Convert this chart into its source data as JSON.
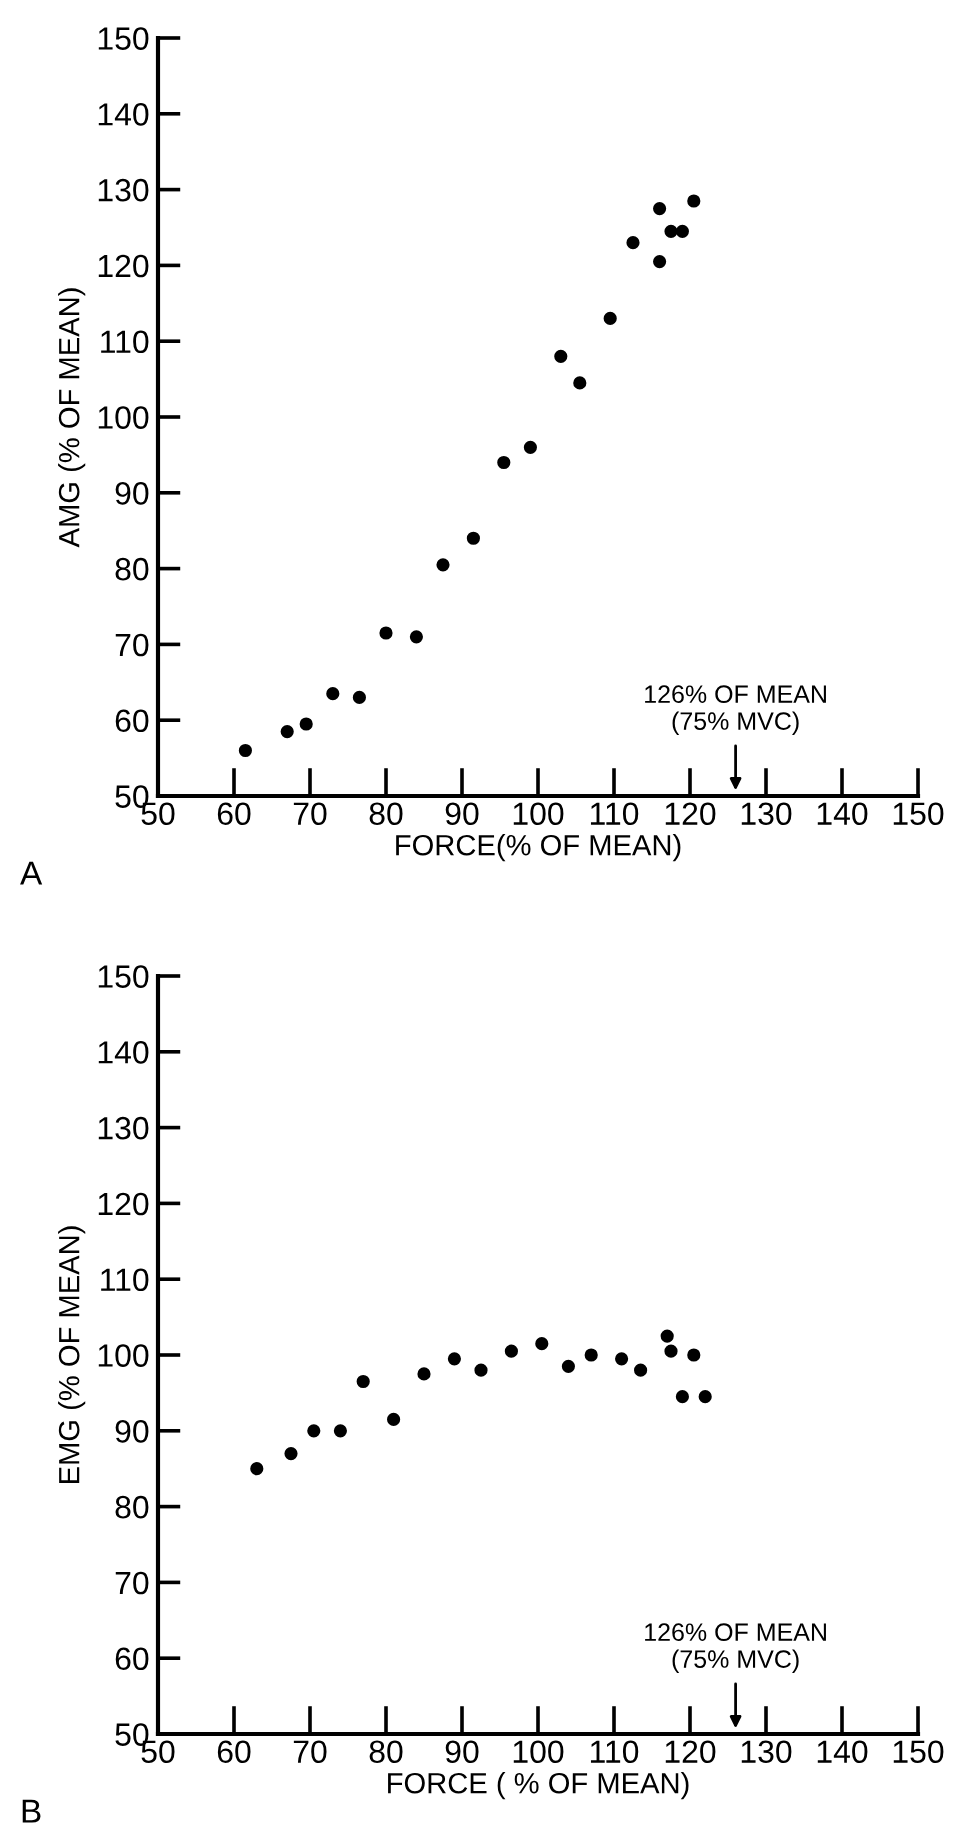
{
  "chart_data": [
    {
      "type": "scatter",
      "xlabel": "FORCE(% OF MEAN)",
      "ylabel": "AMG (% OF MEAN)",
      "xlim": [
        50,
        150
      ],
      "ylim": [
        50,
        150
      ],
      "xticks": [
        50,
        60,
        70,
        80,
        90,
        100,
        110,
        120,
        130,
        140,
        150
      ],
      "yticks": [
        50,
        60,
        70,
        80,
        90,
        100,
        110,
        120,
        130,
        140,
        150
      ],
      "grid": false,
      "marker": "circle",
      "x": [
        61.5,
        67,
        69.5,
        73,
        76.5,
        80,
        84,
        87.5,
        91.5,
        95.5,
        99,
        103,
        105.5,
        109.5,
        112.5,
        116,
        116,
        117.5,
        119,
        120.5
      ],
      "series": [
        {
          "color": "#000000",
          "values": [
            56,
            58.5,
            59.5,
            63.5,
            63,
            71.5,
            71,
            80.5,
            84,
            94,
            96,
            108,
            104.5,
            113,
            123,
            120.5,
            127.5,
            124.5,
            124.5,
            128.5
          ]
        }
      ],
      "annotations": [
        "126% OF MEAN\n(75% MVC)",
        "A"
      ]
    },
    {
      "type": "scatter",
      "xlabel": "FORCE ( % OF MEAN)",
      "ylabel": "EMG (% OF MEAN)",
      "xlim": [
        50,
        150
      ],
      "ylim": [
        50,
        150
      ],
      "xticks": [
        50,
        60,
        70,
        80,
        90,
        100,
        110,
        120,
        130,
        140,
        150
      ],
      "yticks": [
        50,
        60,
        70,
        80,
        90,
        100,
        110,
        120,
        130,
        140,
        150
      ],
      "grid": false,
      "marker": "circle",
      "x": [
        63,
        67.5,
        70.5,
        74,
        77,
        81,
        85,
        89,
        92.5,
        96.5,
        100.5,
        104,
        107,
        111,
        113.5,
        117,
        117.5,
        119,
        120.5,
        122
      ],
      "series": [
        {
          "color": "#000000",
          "values": [
            85,
            87,
            90,
            90,
            96.5,
            91.5,
            97.5,
            99.5,
            98,
            100.5,
            101.5,
            98.5,
            100,
            99.5,
            98,
            102.5,
            100.5,
            94.5,
            100,
            94.5
          ]
        }
      ],
      "annotations": [
        "126% OF MEAN\n(75% MVC)",
        "B"
      ]
    }
  ]
}
